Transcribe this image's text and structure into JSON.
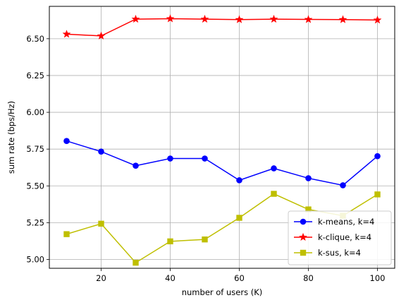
{
  "chart_data": {
    "type": "line",
    "title": "",
    "xlabel": "number of users (K)",
    "ylabel": "sum rate (bps/Hz)",
    "xlim": [
      5,
      105
    ],
    "ylim": [
      4.94,
      6.72
    ],
    "xticks": [
      20,
      40,
      60,
      80,
      100
    ],
    "yticks": [
      5.0,
      5.25,
      5.5,
      5.75,
      6.0,
      6.25,
      6.5
    ],
    "ytick_labels": [
      "5.00",
      "5.25",
      "5.50",
      "5.75",
      "6.00",
      "6.25",
      "6.50"
    ],
    "grid": true,
    "legend_position": "lower-right",
    "x": [
      10,
      20,
      30,
      40,
      50,
      60,
      70,
      80,
      90,
      100
    ],
    "series": [
      {
        "name": "k-means, k=4",
        "color": "#0000ff",
        "marker": "circle",
        "values": [
          5.805,
          5.733,
          5.637,
          5.686,
          5.686,
          5.538,
          5.619,
          5.552,
          5.504,
          5.702
        ]
      },
      {
        "name": "k-clique, k=4",
        "color": "#ff0000",
        "marker": "star",
        "values": [
          6.531,
          6.519,
          6.633,
          6.636,
          6.633,
          6.63,
          6.633,
          6.631,
          6.63,
          6.627
        ]
      },
      {
        "name": "k-sus, k=4",
        "color": "#bfbf00",
        "marker": "square",
        "values": [
          5.172,
          5.243,
          4.978,
          5.123,
          5.136,
          5.283,
          5.446,
          5.34,
          5.297,
          5.442
        ]
      }
    ]
  }
}
